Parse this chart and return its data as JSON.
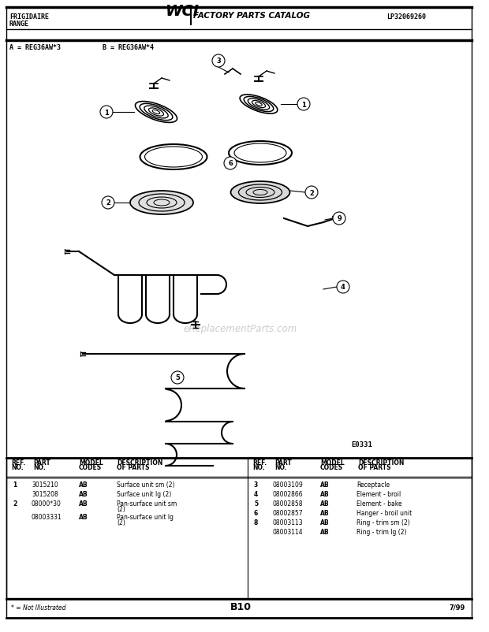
{
  "title_left_1": "FRIGIDAIRE",
  "title_left_2": "RANGE",
  "title_center": "WCI FACTORY PARTS CATALOG",
  "title_right": "LP32069260",
  "model_line_a": "A = REG36AW*3",
  "model_line_b": "B = REG36AW*4",
  "diagram_label": "E0331",
  "watermark": "eReplacementParts.com",
  "page_label": "B10",
  "page_right": "7/99",
  "note": "* = Not Illustrated",
  "table_rows_left": [
    [
      "1",
      "3015210",
      "AB",
      "Surface unit sm (2)"
    ],
    [
      "",
      "3015208",
      "AB",
      "Surface unit lg (2)"
    ],
    [
      "2",
      "08000*30",
      "AB",
      "Pan-surface unit sm (2)"
    ],
    [
      "",
      "08003331",
      "AB",
      "Pan-surface unit lg (2)"
    ]
  ],
  "table_rows_right": [
    [
      "3",
      "08003109",
      "AB",
      "Receptacle"
    ],
    [
      "4",
      "08002866",
      "AB",
      "Element - broil"
    ],
    [
      "5",
      "08002858",
      "AB",
      "Element - bake"
    ],
    [
      "6",
      "08002857",
      "AB",
      "Hanger - broil unit"
    ],
    [
      "8",
      "08003113",
      "AB",
      "Ring - trim sm (2)"
    ],
    [
      "",
      "08003114",
      "AB",
      "Ring - trim lg (2)"
    ]
  ],
  "bg_color": "#ffffff"
}
